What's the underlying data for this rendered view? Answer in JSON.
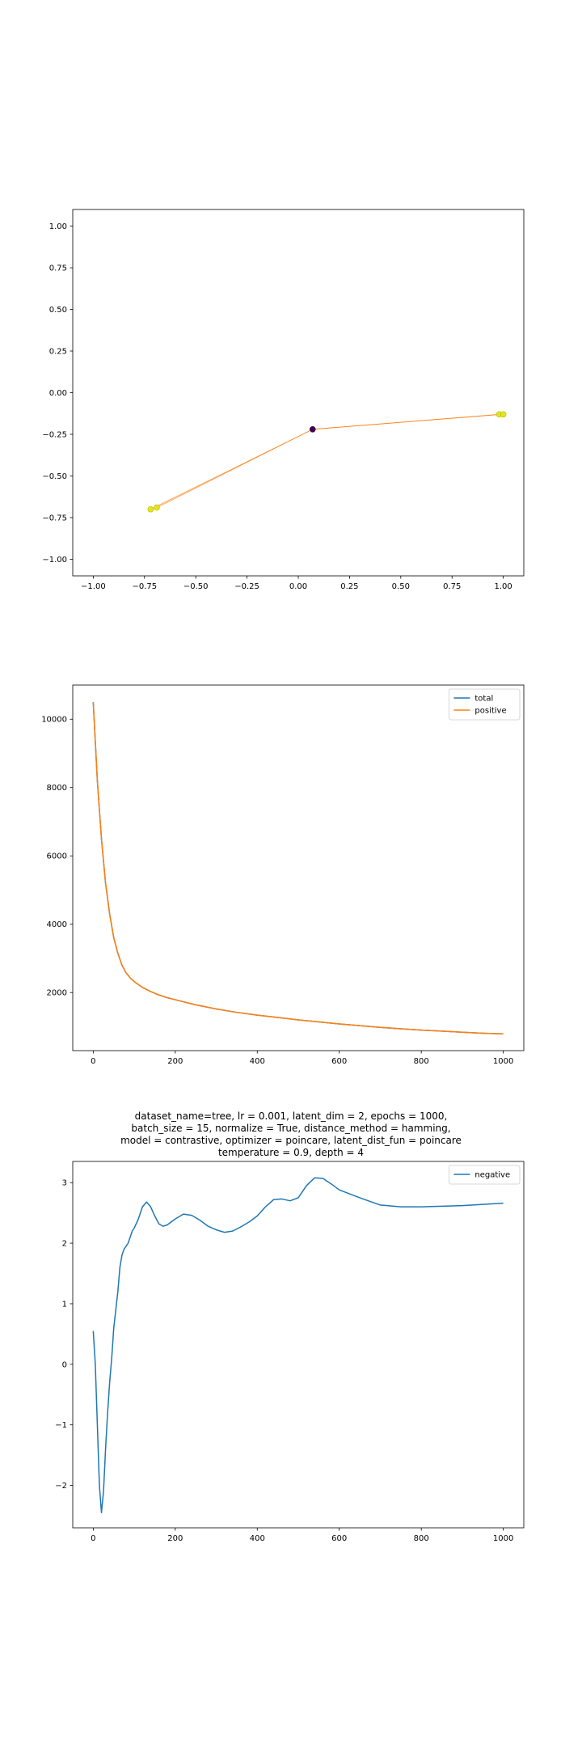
{
  "colors": {
    "blue": "#1f77b4",
    "orange": "#ff7f0e",
    "point_yellow": "#e5e51f",
    "point_purple": "#440154"
  },
  "chart_data": [
    {
      "type": "scatter",
      "title": "",
      "xlabel": "",
      "ylabel": "",
      "xlim": [
        -1.1,
        1.1
      ],
      "ylim": [
        -1.1,
        1.1
      ],
      "x_ticks": [
        -1.0,
        -0.75,
        -0.5,
        -0.25,
        0.0,
        0.25,
        0.5,
        0.75,
        1.0
      ],
      "x_tick_labels": [
        "−1.00",
        "−0.75",
        "−0.50",
        "−0.25",
        "0.00",
        "0.25",
        "0.50",
        "0.75",
        "1.00"
      ],
      "y_ticks": [
        1.0,
        0.75,
        0.5,
        0.25,
        0.0,
        -0.25,
        -0.5,
        -0.75,
        -1.0
      ],
      "y_tick_labels": [
        "1.00",
        "0.75",
        "0.50",
        "0.25",
        "0.00",
        "−0.25",
        "−0.50",
        "−0.75",
        "−1.00"
      ],
      "grid": false,
      "points": [
        {
          "x": 0.07,
          "y": -0.22,
          "color": "purple"
        },
        {
          "x": -0.72,
          "y": -0.7,
          "color": "yellow"
        },
        {
          "x": -0.69,
          "y": -0.69,
          "color": "yellow"
        },
        {
          "x": 0.98,
          "y": -0.13,
          "color": "yellow"
        },
        {
          "x": 1.0,
          "y": -0.13,
          "color": "yellow"
        }
      ],
      "edges": [
        [
          [
            0.07,
            -0.22
          ],
          [
            -0.72,
            -0.7
          ]
        ],
        [
          [
            0.07,
            -0.22
          ],
          [
            -0.69,
            -0.69
          ]
        ],
        [
          [
            0.07,
            -0.22
          ],
          [
            0.98,
            -0.13
          ]
        ],
        [
          [
            0.07,
            -0.22
          ],
          [
            1.0,
            -0.13
          ]
        ]
      ]
    },
    {
      "type": "line",
      "title": "",
      "xlabel": "",
      "ylabel": "",
      "xlim": [
        -50,
        1050
      ],
      "ylim": [
        300,
        11000
      ],
      "x_ticks": [
        0,
        200,
        400,
        600,
        800,
        1000
      ],
      "x_tick_labels": [
        "0",
        "200",
        "400",
        "600",
        "800",
        "1000"
      ],
      "y_ticks": [
        10000,
        8000,
        6000,
        4000,
        2000
      ],
      "y_tick_labels": [
        "10000",
        "8000",
        "6000",
        "4000",
        "2000"
      ],
      "grid": false,
      "legend": "top-right",
      "series": [
        {
          "name": "total",
          "color": "blue",
          "x": [
            0,
            10,
            20,
            30,
            40,
            50,
            60,
            70,
            80,
            90,
            100,
            120,
            140,
            160,
            180,
            200,
            250,
            300,
            350,
            400,
            450,
            500,
            550,
            600,
            650,
            700,
            750,
            800,
            850,
            900,
            950,
            1000
          ],
          "y": [
            10500,
            8200,
            6500,
            5200,
            4300,
            3600,
            3150,
            2800,
            2580,
            2430,
            2320,
            2150,
            2030,
            1930,
            1850,
            1790,
            1640,
            1520,
            1420,
            1340,
            1270,
            1200,
            1140,
            1080,
            1030,
            980,
            940,
            900,
            870,
            840,
            810,
            790
          ]
        },
        {
          "name": "positive",
          "color": "orange",
          "x": [
            0,
            10,
            20,
            30,
            40,
            50,
            60,
            70,
            80,
            90,
            100,
            120,
            140,
            160,
            180,
            200,
            250,
            300,
            350,
            400,
            450,
            500,
            550,
            600,
            650,
            700,
            750,
            800,
            850,
            900,
            950,
            1000
          ],
          "y": [
            10500,
            8200,
            6500,
            5200,
            4300,
            3600,
            3150,
            2800,
            2580,
            2430,
            2320,
            2150,
            2030,
            1930,
            1850,
            1790,
            1640,
            1520,
            1420,
            1340,
            1270,
            1200,
            1140,
            1080,
            1030,
            980,
            940,
            900,
            870,
            840,
            810,
            790
          ]
        }
      ]
    },
    {
      "type": "line",
      "title": "dataset_name=tree, lr = 0.001, latent_dim = 2, epochs = 1000,\nbatch_size = 15, normalize = True, distance_method = hamming,\nmodel = contrastive, optimizer = poincare, latent_dist_fun = poincare\ntemperature = 0.9, depth = 4",
      "title_lines": [
        "dataset_name=tree, lr = 0.001, latent_dim = 2, epochs = 1000,",
        "batch_size = 15, normalize = True, distance_method = hamming,",
        "model = contrastive, optimizer = poincare, latent_dist_fun = poincare",
        "temperature = 0.9, depth = 4"
      ],
      "xlabel": "",
      "ylabel": "",
      "xlim": [
        -50,
        1050
      ],
      "ylim": [
        -2.7,
        3.35
      ],
      "x_ticks": [
        0,
        200,
        400,
        600,
        800,
        1000
      ],
      "x_tick_labels": [
        "0",
        "200",
        "400",
        "600",
        "800",
        "1000"
      ],
      "y_ticks": [
        3,
        2,
        1,
        0,
        -1,
        -2
      ],
      "y_tick_labels": [
        "3",
        "2",
        "1",
        "0",
        "−1",
        "−2"
      ],
      "grid": false,
      "legend": "top-right",
      "series": [
        {
          "name": "negative",
          "color": "blue",
          "x": [
            0,
            5,
            10,
            15,
            20,
            25,
            30,
            35,
            40,
            45,
            50,
            55,
            60,
            65,
            70,
            75,
            80,
            85,
            90,
            95,
            100,
            110,
            120,
            130,
            140,
            150,
            160,
            170,
            180,
            190,
            200,
            220,
            240,
            260,
            280,
            300,
            320,
            340,
            360,
            380,
            400,
            420,
            440,
            460,
            480,
            500,
            520,
            540,
            560,
            580,
            600,
            650,
            700,
            750,
            800,
            900,
            1000
          ],
          "y": [
            0.55,
            0.0,
            -1.0,
            -2.0,
            -2.45,
            -2.1,
            -1.4,
            -0.8,
            -0.3,
            0.1,
            0.6,
            0.9,
            1.2,
            1.6,
            1.8,
            1.9,
            1.95,
            2.0,
            2.1,
            2.2,
            2.25,
            2.4,
            2.6,
            2.68,
            2.6,
            2.45,
            2.32,
            2.28,
            2.3,
            2.35,
            2.4,
            2.48,
            2.46,
            2.38,
            2.28,
            2.22,
            2.18,
            2.2,
            2.27,
            2.35,
            2.45,
            2.6,
            2.72,
            2.73,
            2.7,
            2.75,
            2.95,
            3.08,
            3.07,
            2.98,
            2.88,
            2.75,
            2.63,
            2.6,
            2.6,
            2.62,
            2.66
          ]
        }
      ]
    }
  ]
}
